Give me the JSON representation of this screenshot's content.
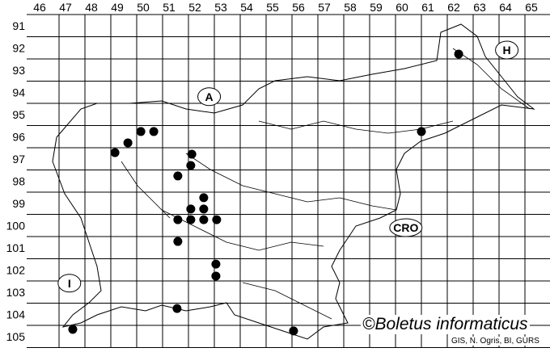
{
  "map": {
    "columns": [
      "46",
      "47",
      "48",
      "49",
      "50",
      "51",
      "52",
      "53",
      "54",
      "55",
      "56",
      "57",
      "58",
      "59",
      "60",
      "61",
      "62",
      "63",
      "64",
      "65"
    ],
    "rows": [
      "91",
      "92",
      "93",
      "94",
      "95",
      "96",
      "97",
      "98",
      "99",
      "100",
      "101",
      "102",
      "103",
      "104",
      "105"
    ],
    "regions": [
      {
        "label": "A",
        "col": 52.8,
        "row": 94.7
      },
      {
        "label": "H",
        "col": 64.3,
        "row": 92.6
      },
      {
        "label": "CRO",
        "col": 60.4,
        "row": 100.6
      },
      {
        "label": "I",
        "col": 47.4,
        "row": 103.1
      }
    ],
    "records": [
      [
        62.44,
        92.78
      ],
      [
        61.0,
        96.27
      ],
      [
        50.16,
        96.27
      ],
      [
        50.66,
        96.27
      ],
      [
        49.66,
        96.78
      ],
      [
        49.16,
        97.22
      ],
      [
        52.13,
        97.29
      ],
      [
        52.09,
        97.8
      ],
      [
        51.59,
        98.27
      ],
      [
        52.59,
        99.25
      ],
      [
        52.09,
        99.76
      ],
      [
        52.59,
        99.76
      ],
      [
        51.59,
        100.24
      ],
      [
        52.09,
        100.24
      ],
      [
        52.59,
        100.24
      ],
      [
        53.09,
        100.24
      ],
      [
        51.59,
        101.22
      ],
      [
        53.06,
        102.24
      ],
      [
        53.06,
        102.78
      ],
      [
        51.56,
        104.24
      ],
      [
        47.53,
        105.18
      ],
      [
        56.06,
        105.25
      ]
    ],
    "dot_color": "#000000"
  },
  "copyright": "©Boletus informaticus",
  "credit": "GIS, N. Ogris, BI, GURS"
}
